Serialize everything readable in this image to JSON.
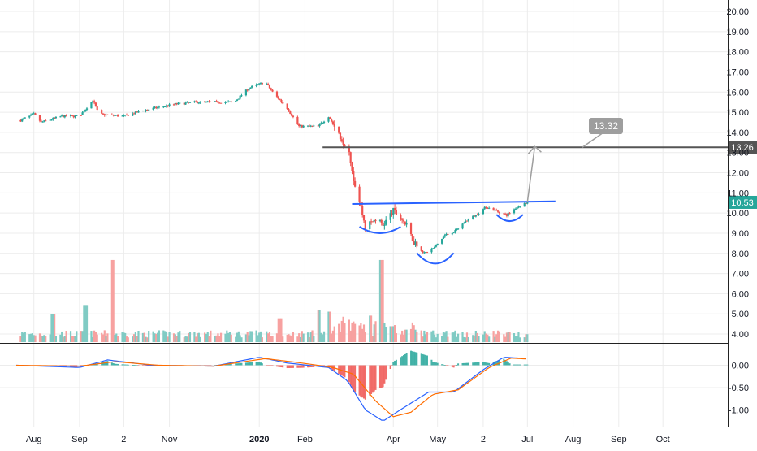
{
  "chart_data": [
    {
      "type": "candlestick",
      "panel": "price",
      "title": "",
      "y_ticks": [
        "20.00",
        "19.00",
        "18.00",
        "17.00",
        "16.00",
        "15.00",
        "14.00",
        "13.00",
        "12.00",
        "11.00",
        "10.00",
        "9.00",
        "8.00",
        "7.00",
        "6.00",
        "5.00",
        "4.00"
      ],
      "ylim": [
        3.0,
        20.5
      ],
      "grid": true,
      "price_series": [
        {
          "x": "2019-07-23",
          "y": 14.6
        },
        {
          "x": "2019-08-01",
          "y": 14.9
        },
        {
          "x": "2019-08-06",
          "y": 14.5
        },
        {
          "x": "2019-08-20",
          "y": 14.8
        },
        {
          "x": "2019-09-01",
          "y": 14.8
        },
        {
          "x": "2019-09-10",
          "y": 15.6
        },
        {
          "x": "2019-09-14",
          "y": 14.9
        },
        {
          "x": "2019-10-01",
          "y": 14.8
        },
        {
          "x": "2019-10-15",
          "y": 15.1
        },
        {
          "x": "2019-11-05",
          "y": 15.4
        },
        {
          "x": "2019-11-20",
          "y": 15.5
        },
        {
          "x": "2019-12-15",
          "y": 15.5
        },
        {
          "x": "2019-12-25",
          "y": 16.2
        },
        {
          "x": "2020-01-05",
          "y": 16.5
        },
        {
          "x": "2020-01-10",
          "y": 16.0
        },
        {
          "x": "2020-01-20",
          "y": 15.2
        },
        {
          "x": "2020-01-28",
          "y": 14.3
        },
        {
          "x": "2020-02-10",
          "y": 14.3
        },
        {
          "x": "2020-02-17",
          "y": 14.8
        },
        {
          "x": "2020-02-25",
          "y": 13.8
        },
        {
          "x": "2020-03-02",
          "y": 13.1
        },
        {
          "x": "2020-03-05",
          "y": 11.7
        },
        {
          "x": "2020-03-09",
          "y": 10.6
        },
        {
          "x": "2020-03-13",
          "y": 9.3
        },
        {
          "x": "2020-03-20",
          "y": 9.7
        },
        {
          "x": "2020-03-25",
          "y": 9.4
        },
        {
          "x": "2020-04-01",
          "y": 10.1
        },
        {
          "x": "2020-04-08",
          "y": 9.6
        },
        {
          "x": "2020-04-15",
          "y": 8.6
        },
        {
          "x": "2020-04-22",
          "y": 8.0
        },
        {
          "x": "2020-04-29",
          "y": 8.3
        },
        {
          "x": "2020-05-06",
          "y": 8.9
        },
        {
          "x": "2020-05-13",
          "y": 9.1
        },
        {
          "x": "2020-05-20",
          "y": 9.6
        },
        {
          "x": "2020-05-27",
          "y": 9.9
        },
        {
          "x": "2020-06-03",
          "y": 10.3
        },
        {
          "x": "2020-06-10",
          "y": 10.1
        },
        {
          "x": "2020-06-17",
          "y": 9.9
        },
        {
          "x": "2020-06-24",
          "y": 10.3
        },
        {
          "x": "2020-07-01",
          "y": 10.53
        }
      ],
      "volume": [
        {
          "x": "2019-08-14",
          "y": 2.1
        },
        {
          "x": "2019-09-05",
          "y": 2.8
        },
        {
          "x": "2019-09-23",
          "y": 6.2
        },
        {
          "x": "2020-01-15",
          "y": 1.8
        },
        {
          "x": "2020-02-10",
          "y": 2.4
        },
        {
          "x": "2020-02-17",
          "y": 2.3
        },
        {
          "x": "2020-03-16",
          "y": 2.0
        },
        {
          "x": "2020-03-24",
          "y": 6.2
        },
        {
          "x": "2020-03-31",
          "y": 1.2
        },
        {
          "x": "2020-07-01",
          "y": 0.6
        }
      ],
      "annotations": {
        "horizontal_line": {
          "y": 13.26,
          "label": "13.26"
        },
        "target_label": "13.32",
        "current_price": {
          "y": 10.53,
          "label": "10.53"
        },
        "neckline": {
          "x_start": "2020-03-04",
          "x_end": "2020-07-20",
          "y_start": 10.45,
          "y_end": 10.58
        },
        "arrow": {
          "x_start": "2020-07-01",
          "y_start": 10.55,
          "x_end": "2020-07-06",
          "y_end": 13.3
        },
        "shoulders": [
          {
            "x_start": "2020-03-09",
            "x_end": "2020-04-06",
            "y_low": 9.0
          },
          {
            "x_start": "2020-04-17",
            "x_end": "2020-05-12",
            "y_low": 7.45
          },
          {
            "x_start": "2020-06-10",
            "x_end": "2020-06-28",
            "y_low": 9.6
          }
        ]
      }
    },
    {
      "type": "line",
      "panel": "indicator",
      "y_ticks": [
        "0.00",
        "-0.50",
        "-1.00"
      ],
      "ylim": [
        -1.3,
        0.4
      ],
      "series": [
        {
          "color": "#2962ff",
          "points": [
            {
              "x": "2019-07-20",
              "y": 0.0
            },
            {
              "x": "2019-09-01",
              "y": -0.05
            },
            {
              "x": "2019-09-20",
              "y": 0.12
            },
            {
              "x": "2019-10-20",
              "y": 0.0
            },
            {
              "x": "2019-12-01",
              "y": -0.02
            },
            {
              "x": "2020-01-01",
              "y": 0.18
            },
            {
              "x": "2020-01-20",
              "y": 0.05
            },
            {
              "x": "2020-02-17",
              "y": -0.05
            },
            {
              "x": "2020-03-01",
              "y": -0.35
            },
            {
              "x": "2020-03-13",
              "y": -1.0
            },
            {
              "x": "2020-03-25",
              "y": -1.25
            },
            {
              "x": "2020-04-08",
              "y": -0.95
            },
            {
              "x": "2020-04-25",
              "y": -0.6
            },
            {
              "x": "2020-05-12",
              "y": -0.6
            },
            {
              "x": "2020-06-01",
              "y": -0.1
            },
            {
              "x": "2020-06-15",
              "y": 0.18
            },
            {
              "x": "2020-07-01",
              "y": 0.15
            }
          ]
        },
        {
          "color": "#ff6d00",
          "points": [
            {
              "x": "2019-07-20",
              "y": 0.0
            },
            {
              "x": "2019-09-01",
              "y": -0.02
            },
            {
              "x": "2019-09-25",
              "y": 0.08
            },
            {
              "x": "2019-10-25",
              "y": 0.0
            },
            {
              "x": "2019-12-01",
              "y": -0.02
            },
            {
              "x": "2020-01-05",
              "y": 0.15
            },
            {
              "x": "2020-01-30",
              "y": 0.05
            },
            {
              "x": "2020-02-20",
              "y": -0.05
            },
            {
              "x": "2020-03-05",
              "y": -0.2
            },
            {
              "x": "2020-03-20",
              "y": -0.8
            },
            {
              "x": "2020-04-01",
              "y": -1.15
            },
            {
              "x": "2020-04-13",
              "y": -1.05
            },
            {
              "x": "2020-04-28",
              "y": -0.65
            },
            {
              "x": "2020-05-15",
              "y": -0.55
            },
            {
              "x": "2020-06-05",
              "y": -0.05
            },
            {
              "x": "2020-06-20",
              "y": 0.16
            },
            {
              "x": "2020-07-01",
              "y": 0.14
            }
          ]
        }
      ]
    }
  ],
  "x_axis": {
    "ticks": [
      {
        "x": "2019-08-01",
        "label": "Aug"
      },
      {
        "x": "2019-09-01",
        "label": "Sep"
      },
      {
        "x": "2019-10-01",
        "label": "2"
      },
      {
        "x": "2019-11-01",
        "label": "Nov"
      },
      {
        "x": "2020-01-01",
        "label": "2020"
      },
      {
        "x": "2020-02-01",
        "label": "Feb"
      },
      {
        "x": "2020-04-01",
        "label": "Apr"
      },
      {
        "x": "2020-05-01",
        "label": "May"
      },
      {
        "x": "2020-06-01",
        "label": "2"
      },
      {
        "x": "2020-07-01",
        "label": "Jul"
      },
      {
        "x": "2020-08-01",
        "label": "Aug"
      },
      {
        "x": "2020-09-01",
        "label": "Sep"
      },
      {
        "x": "2020-10-01",
        "label": "Oct"
      }
    ]
  },
  "colors": {
    "up": "#26a69a",
    "down": "#ef5350",
    "up_volume": "#80cbc4",
    "down_volume": "#f7a1a0",
    "pattern": "#2962ff",
    "level": "#555555",
    "label_bg": "#9e9e9e",
    "grid": "#ececec",
    "axis": "#404040"
  }
}
